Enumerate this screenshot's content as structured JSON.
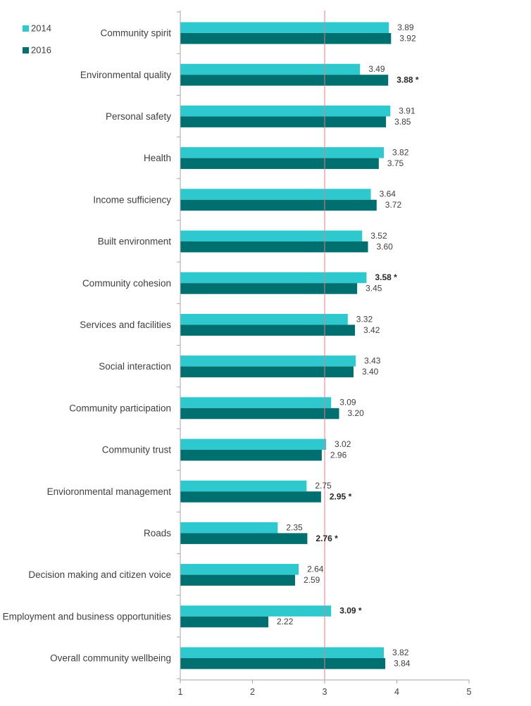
{
  "chart_data": {
    "type": "bar",
    "orientation": "horizontal",
    "categories": [
      "Community spirit",
      "Environmental quality",
      "Personal safety",
      "Health",
      "Income sufficiency",
      "Built environment",
      "Community cohesion",
      "Services and facilities",
      "Social interaction",
      "Community participation",
      "Community trust",
      "Envioronmental management",
      "Roads",
      "Decision making and citizen voice",
      "Employment and business opportunities",
      "Overall community wellbeing"
    ],
    "series": [
      {
        "name": "2014",
        "color": "#2ec9cf",
        "values": [
          3.89,
          3.49,
          3.91,
          3.82,
          3.64,
          3.52,
          3.58,
          3.32,
          3.43,
          3.09,
          3.02,
          2.75,
          2.35,
          2.64,
          3.09,
          3.82
        ],
        "labels": [
          "3.89",
          "3.49",
          "3.91",
          "3.82",
          "3.64",
          "3.52",
          "3.58 *",
          "3.32",
          "3.43",
          "3.09",
          "3.02",
          "2.75",
          "2.35",
          "2.64",
          "3.09 *",
          "3.82"
        ],
        "emphasized": [
          false,
          false,
          false,
          false,
          false,
          false,
          true,
          false,
          false,
          false,
          false,
          false,
          false,
          false,
          true,
          false
        ]
      },
      {
        "name": "2016",
        "color": "#006f6f",
        "values": [
          3.92,
          3.88,
          3.85,
          3.75,
          3.72,
          3.6,
          3.45,
          3.42,
          3.4,
          3.2,
          2.96,
          2.95,
          2.76,
          2.59,
          2.22,
          3.84
        ],
        "labels": [
          "3.92",
          "3.88 *",
          "3.85",
          "3.75",
          "3.72",
          "3.60",
          "3.45",
          "3.42",
          "3.40",
          "3.20",
          "2.96",
          "2.95 *",
          "2.76 *",
          "2.59",
          "2.22",
          "3.84"
        ],
        "emphasized": [
          false,
          true,
          false,
          false,
          false,
          false,
          false,
          false,
          false,
          false,
          false,
          true,
          true,
          false,
          false,
          false
        ]
      }
    ],
    "xlim": [
      1,
      5
    ],
    "xticks": [
      "1",
      "2",
      "3",
      "4",
      "5"
    ],
    "reference_line": 3,
    "reference_color": "#e08080",
    "axis_color": "#a6a6a6",
    "legend_position": "top-left",
    "grid": false
  }
}
